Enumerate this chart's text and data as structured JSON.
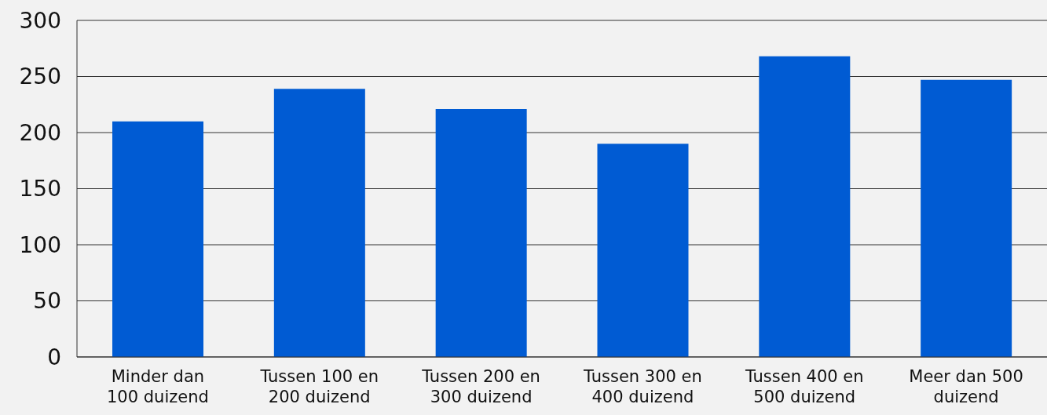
{
  "chart_data": {
    "type": "bar",
    "categories": [
      "Minder dan 100 duizend",
      "Tussen 100 en 200 duizend",
      "Tussen 200 en 300 duizend",
      "Tussen 300 en 400 duizend",
      "Tussen 400 en 500 duizend",
      "Meer dan 500 duizend"
    ],
    "values": [
      210,
      239,
      221,
      190,
      268,
      247
    ],
    "color": "#005bd3",
    "ylim": [
      0,
      300
    ],
    "yticks": [
      0,
      50,
      100,
      150,
      200,
      250,
      300
    ],
    "grid": "y"
  }
}
